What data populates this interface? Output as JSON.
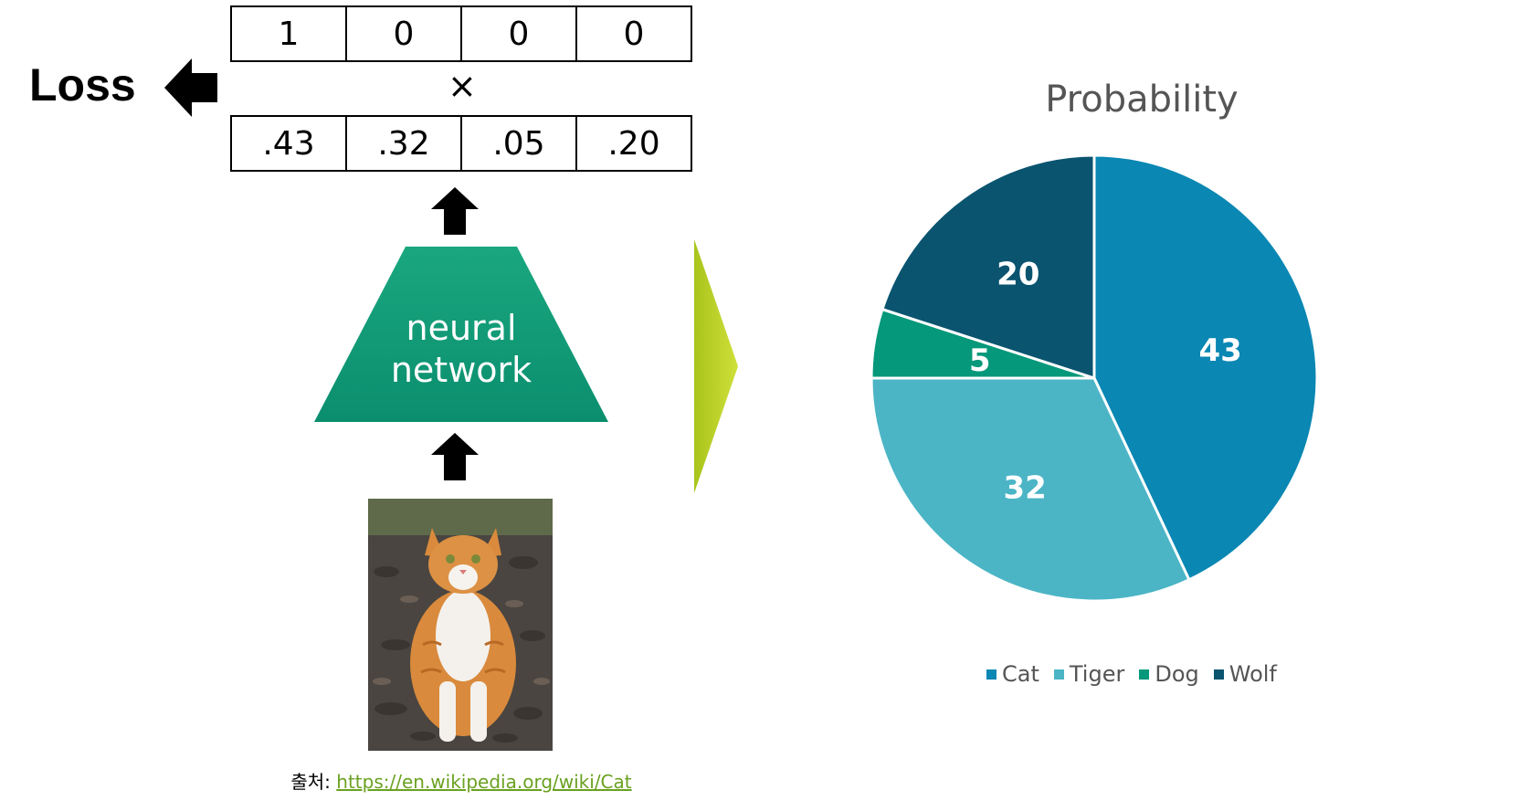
{
  "loss_label": "Loss",
  "target_row": [
    "1",
    "0",
    "0",
    "0"
  ],
  "multiply_symbol": "×",
  "prediction_row": [
    ".43",
    ".32",
    ".05",
    ".20"
  ],
  "network_label_line1": "neural",
  "network_label_line2": "network",
  "source": {
    "prefix": "출처: ",
    "link_text": "https://en.wikipedia.org/wiki/Cat"
  },
  "colors": {
    "network_green": "#0f9a78",
    "chevron": "#b7cf1f",
    "cat": "#0a87b3",
    "tiger": "#4bb5c6",
    "dog": "#05987a",
    "wolf": "#0a546f"
  },
  "chart_data": {
    "type": "pie",
    "title": "Probability",
    "categories": [
      "Cat",
      "Tiger",
      "Dog",
      "Wolf"
    ],
    "values": [
      43,
      32,
      5,
      20
    ],
    "data_labels": [
      "43",
      "32",
      "5",
      "20"
    ],
    "legend_position": "bottom"
  }
}
